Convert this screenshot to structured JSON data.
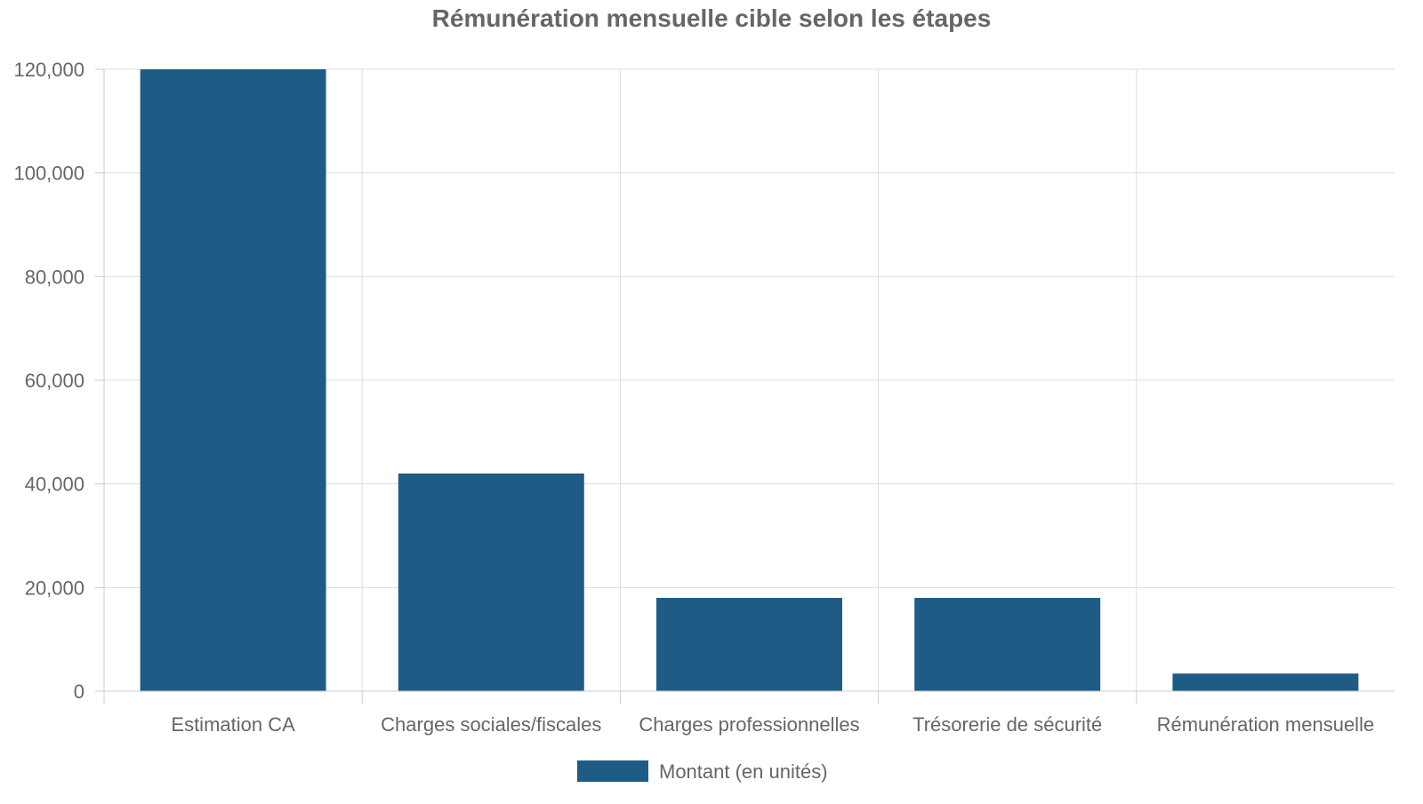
{
  "chart_data": {
    "type": "bar",
    "title": "Rémunération mensuelle cible selon les étapes",
    "categories": [
      "Estimation CA",
      "Charges sociales/fiscales",
      "Charges professionnelles",
      "Trésorerie de sécurité",
      "Rémunération mensuelle"
    ],
    "series": [
      {
        "name": "Montant (en unités)",
        "values": [
          120000,
          42000,
          18000,
          18000,
          3400
        ],
        "color": "#1f5c85"
      }
    ],
    "ylim": [
      0,
      120000
    ],
    "yticks": [
      0,
      20000,
      40000,
      60000,
      80000,
      100000,
      120000
    ],
    "ytick_labels": [
      "0",
      "20,000",
      "40,000",
      "60,000",
      "80,000",
      "100,000",
      "120,000"
    ],
    "grid": true,
    "legend_position": "bottom-center",
    "colors": {
      "text": "#666666",
      "grid": "#dddddd",
      "axis": "#cccccc"
    }
  }
}
